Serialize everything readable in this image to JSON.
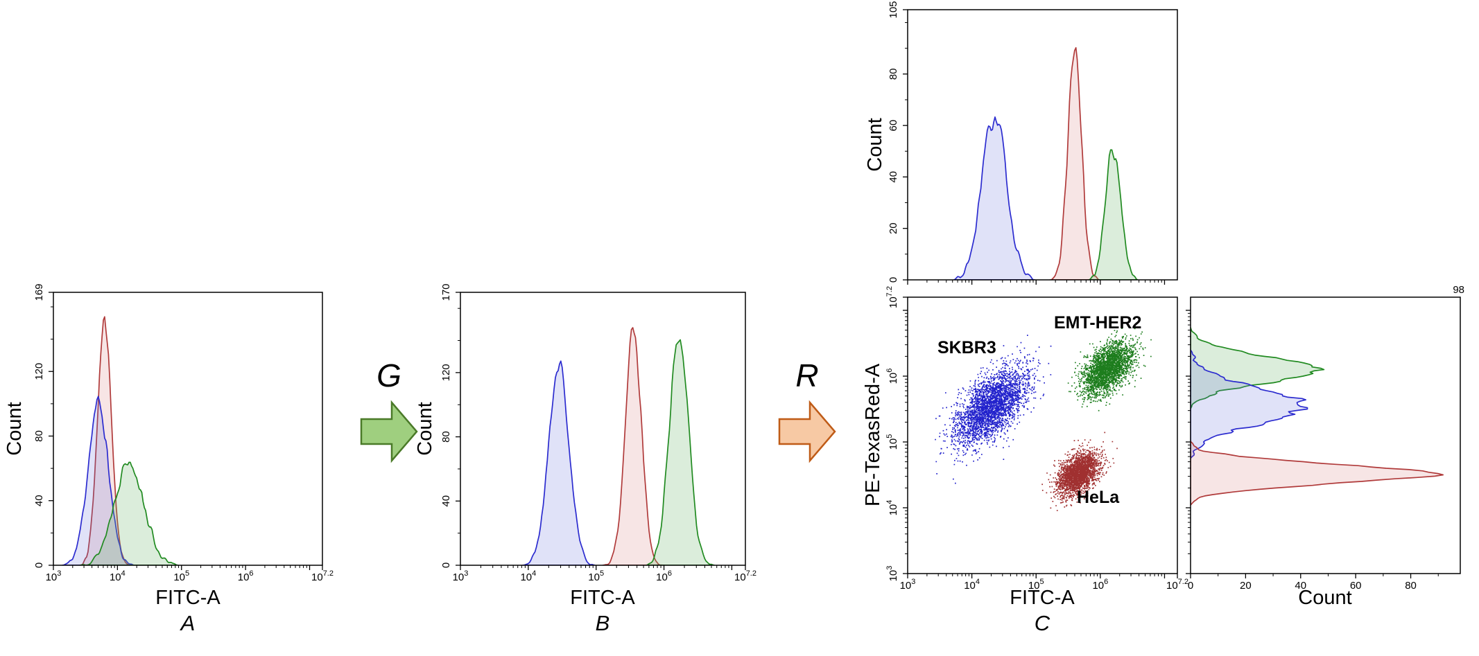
{
  "colors": {
    "blue": "#2b2bcf",
    "red": "#b03a3a",
    "green": "#208a20",
    "blue_fill": "rgba(100,110,220,0.20)",
    "red_fill": "rgba(205,95,95,0.16)",
    "green_fill": "rgba(110,185,110,0.25)",
    "blue_dot": "#2222cc",
    "red_dot": "#a03030",
    "green_dot": "#1d7d1d",
    "axis": "#000000"
  },
  "arrows": {
    "g": {
      "label": "G",
      "fill": "#9fcf7f",
      "stroke": "#4a7a28"
    },
    "r": {
      "label": "R",
      "fill": "#f7c9a4",
      "stroke": "#bf5b17"
    }
  },
  "labels": {
    "panel_a_letter": "A",
    "panel_b_letter": "B",
    "panel_c_letter": "C",
    "fitc_axis": "FITC-A",
    "count_axis": "Count",
    "pe_axis": "PE-TexasRed-A",
    "cluster_skbr3": "SKBR3",
    "cluster_emt_her2": "EMT-HER2",
    "cluster_hela": "HeLa"
  },
  "chart_data": [
    {
      "id": "panel_a",
      "type": "area",
      "panel_letter": "A",
      "xlabel": "FITC-A",
      "ylabel": "Count",
      "xscale": "log10",
      "xlim_log10": [
        3,
        7.2
      ],
      "ylim": [
        0,
        169
      ],
      "yticks": [
        0,
        40,
        80,
        120,
        169
      ],
      "y_minor_step": 20,
      "xticks": [
        {
          "v": 3,
          "base": "10",
          "exp": "3"
        },
        {
          "v": 4,
          "base": "10",
          "exp": "4"
        },
        {
          "v": 5,
          "base": "10",
          "exp": "5"
        },
        {
          "v": 6,
          "base": "10",
          "exp": "6"
        },
        {
          "v": 7.2,
          "base": "10",
          "exp": "7.2"
        }
      ],
      "series": [
        {
          "name": "HeLa",
          "color": "red",
          "center": 3.8,
          "sigma": 0.11,
          "height": 150,
          "seed": 12
        },
        {
          "name": "SKBR3",
          "color": "blue",
          "center": 3.7,
          "sigma": 0.16,
          "height": 100,
          "seed": 11
        },
        {
          "name": "EMT-HER2",
          "color": "green",
          "center": 4.18,
          "sigma": 0.23,
          "height": 65,
          "seed": 13
        }
      ]
    },
    {
      "id": "panel_b",
      "type": "area",
      "panel_letter": "B",
      "xlabel": "FITC-A",
      "ylabel": "Count",
      "xscale": "log10",
      "xlim_log10": [
        3,
        7.2
      ],
      "ylim": [
        0,
        170
      ],
      "yticks": [
        0,
        40,
        80,
        120,
        170
      ],
      "y_minor_step": 20,
      "xticks": [
        {
          "v": 3,
          "base": "10",
          "exp": "3"
        },
        {
          "v": 4,
          "base": "10",
          "exp": "4"
        },
        {
          "v": 5,
          "base": "10",
          "exp": "5"
        },
        {
          "v": 6,
          "base": "10",
          "exp": "6"
        },
        {
          "v": 7.2,
          "base": "10",
          "exp": "7.2"
        }
      ],
      "series": [
        {
          "name": "SKBR3",
          "color": "blue",
          "center": 4.45,
          "sigma": 0.15,
          "height": 125,
          "seed": 21
        },
        {
          "name": "HeLa",
          "color": "red",
          "center": 5.55,
          "sigma": 0.12,
          "height": 148,
          "seed": 22
        },
        {
          "name": "EMT-HER2",
          "color": "green",
          "center": 6.22,
          "sigma": 0.14,
          "height": 143,
          "seed": 23
        }
      ]
    },
    {
      "id": "panel_c_top",
      "type": "area",
      "xlabel": "",
      "ylabel": "Count",
      "xscale": "log10",
      "xlim_log10": [
        3,
        7.2
      ],
      "ylim": [
        0,
        105
      ],
      "yticks": [
        0,
        20,
        40,
        60,
        80,
        105
      ],
      "y_minor_step": 10,
      "series": [
        {
          "name": "SKBR3",
          "color": "blue",
          "center": 4.35,
          "sigma": 0.19,
          "height": 64,
          "seed": 31
        },
        {
          "name": "HeLa",
          "color": "red",
          "center": 5.6,
          "sigma": 0.105,
          "height": 92,
          "seed": 32
        },
        {
          "name": "EMT-HER2",
          "color": "green",
          "center": 6.2,
          "sigma": 0.115,
          "height": 52,
          "seed": 33
        }
      ]
    },
    {
      "id": "panel_c_scatter",
      "type": "scatter",
      "panel_letter": "C",
      "xlabel": "FITC-A",
      "ylabel": "PE-TexasRed-A",
      "xlim_log10": [
        3,
        7.2
      ],
      "ylim_log10": [
        3,
        7.2
      ],
      "xticks": [
        {
          "v": 3,
          "base": "10",
          "exp": "3"
        },
        {
          "v": 4,
          "base": "10",
          "exp": "4"
        },
        {
          "v": 5,
          "base": "10",
          "exp": "5"
        },
        {
          "v": 6,
          "base": "10",
          "exp": "6"
        },
        {
          "v": 7.2,
          "base": "10",
          "exp": "7.2"
        }
      ],
      "yticks": [
        {
          "v": 3,
          "base": "10",
          "exp": "3"
        },
        {
          "v": 4,
          "base": "10",
          "exp": "4"
        },
        {
          "v": 5,
          "base": "10",
          "exp": "5"
        },
        {
          "v": 6,
          "base": "10",
          "exp": "6"
        },
        {
          "v": 7.2,
          "base": "10",
          "exp": "7.2"
        }
      ],
      "clusters": [
        {
          "name": "SKBR3",
          "color": "blue",
          "n": 3000,
          "mu_log10": [
            4.3,
            5.55
          ],
          "sigma_log10": [
            0.28,
            0.3
          ],
          "rho": 0.6,
          "seed": 41
        },
        {
          "name": "EMT-HER2",
          "color": "green",
          "n": 2500,
          "mu_log10": [
            6.1,
            6.12
          ],
          "sigma_log10": [
            0.2,
            0.2
          ],
          "rho": 0.5,
          "seed": 42
        },
        {
          "name": "HeLa",
          "color": "red",
          "n": 2500,
          "mu_log10": [
            5.65,
            4.52
          ],
          "sigma_log10": [
            0.16,
            0.16
          ],
          "rho": 0.4,
          "seed": 43
        }
      ]
    },
    {
      "id": "panel_c_right",
      "type": "area",
      "orientation": "horizontal",
      "xlabel": "Count",
      "xlim": [
        0,
        98
      ],
      "xticks_linear": [
        0,
        20,
        40,
        60,
        80
      ],
      "x_minor_step": 10,
      "x_max_label": "98",
      "yscale": "log10",
      "ylim_log10": [
        3,
        7.2
      ],
      "series": [
        {
          "name": "EMT-HER2",
          "color": "green",
          "center": 6.1,
          "sigma": 0.2,
          "height": 46,
          "seed": 51
        },
        {
          "name": "SKBR3",
          "color": "blue",
          "center": 5.55,
          "sigma": 0.27,
          "height": 42,
          "seed": 52
        },
        {
          "name": "HeLa",
          "color": "red",
          "center": 4.52,
          "sigma": 0.145,
          "height": 88,
          "seed": 53
        }
      ]
    }
  ]
}
